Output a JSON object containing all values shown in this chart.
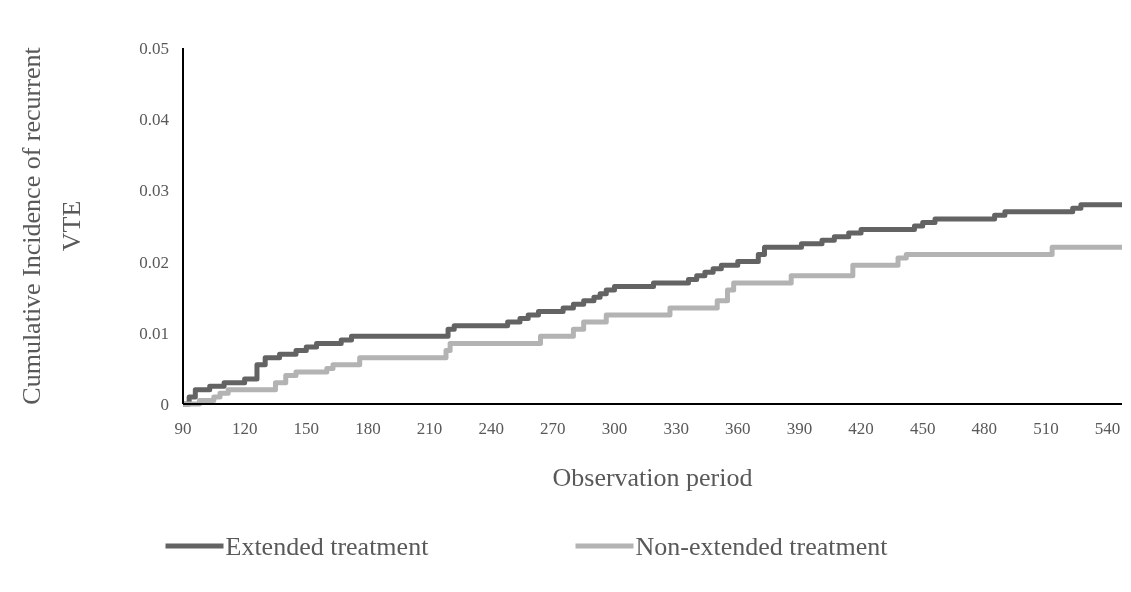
{
  "chart_data": {
    "type": "step",
    "xlabel": "Observation period",
    "ylabel": "Cumulative Incidence of recurrent VTE",
    "xlim": [
      90,
      547
    ],
    "xticks": [
      90,
      120,
      150,
      180,
      210,
      240,
      270,
      300,
      330,
      360,
      390,
      420,
      450,
      480,
      510,
      540
    ],
    "ylim": [
      0,
      0.05
    ],
    "yticks": [
      0,
      0.01,
      0.02,
      0.03,
      0.04,
      0.05
    ],
    "grid": false,
    "legend": "bottom",
    "series": [
      {
        "name": "Extended treatment",
        "color": "#636363",
        "x": [
          90,
          93,
          96,
          103,
          110,
          120,
          126,
          130,
          137,
          145,
          150,
          155,
          167,
          172,
          218,
          219,
          222,
          248,
          254,
          258,
          263,
          275,
          280,
          285,
          290,
          293,
          296,
          300,
          319,
          336,
          340,
          344,
          348,
          352,
          360,
          370,
          373,
          391,
          401,
          407,
          414,
          420,
          446,
          450,
          456,
          485,
          490,
          523,
          527,
          547
        ],
        "values": [
          0,
          0.001,
          0.002,
          0.0025,
          0.003,
          0.0035,
          0.0055,
          0.0065,
          0.007,
          0.0075,
          0.008,
          0.0085,
          0.009,
          0.0095,
          0.0095,
          0.0105,
          0.011,
          0.0115,
          0.012,
          0.0125,
          0.013,
          0.0135,
          0.014,
          0.0145,
          0.015,
          0.0155,
          0.016,
          0.0165,
          0.017,
          0.0175,
          0.018,
          0.0185,
          0.019,
          0.0195,
          0.02,
          0.021,
          0.022,
          0.0225,
          0.023,
          0.0235,
          0.024,
          0.0245,
          0.025,
          0.0255,
          0.026,
          0.0265,
          0.027,
          0.0275,
          0.028,
          0.028
        ]
      },
      {
        "name": "Non-extended treatment",
        "color": "#b3b3b3",
        "x": [
          90,
          98,
          105,
          108,
          112,
          135,
          140,
          145,
          160,
          163,
          176,
          218,
          220,
          264,
          280,
          285,
          296,
          327,
          350,
          355,
          358,
          386,
          416,
          438,
          442,
          513,
          547
        ],
        "values": [
          0,
          0.0005,
          0.001,
          0.0015,
          0.002,
          0.003,
          0.004,
          0.0045,
          0.005,
          0.0055,
          0.0065,
          0.0075,
          0.0085,
          0.0095,
          0.0105,
          0.0115,
          0.0125,
          0.0135,
          0.0145,
          0.016,
          0.017,
          0.018,
          0.0195,
          0.0205,
          0.021,
          0.022,
          0.022
        ]
      }
    ]
  }
}
